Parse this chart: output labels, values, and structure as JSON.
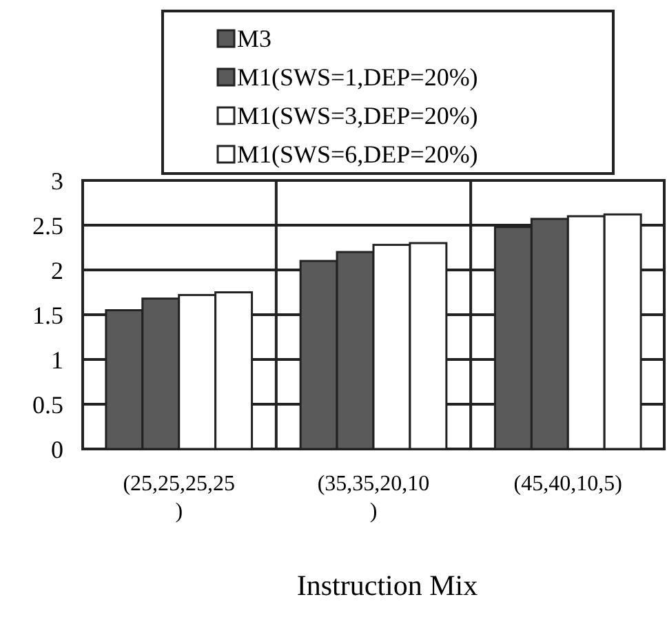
{
  "chart_data": {
    "type": "bar",
    "xlabel": "Instruction Mix",
    "categories": [
      "(25,25,25,25)",
      "(35,35,20,10)",
      "(45,40,10,5)"
    ],
    "series": [
      {
        "name": "M3",
        "color": "#5a5a5a",
        "values": [
          1.55,
          2.1,
          2.48
        ]
      },
      {
        "name": "M1(SWS=1,DEP=20%)",
        "color": "#5a5a5a",
        "values": [
          1.68,
          2.2,
          2.57
        ]
      },
      {
        "name": "M1(SWS=3,DEP=20%)",
        "color": "#ffffff",
        "values": [
          1.72,
          2.28,
          2.6
        ]
      },
      {
        "name": "M1(SWS=6,DEP=20%)",
        "color": "#ffffff",
        "values": [
          1.75,
          2.3,
          2.62
        ]
      }
    ],
    "ylim": [
      0,
      3
    ],
    "yticks": [
      0,
      0.5,
      1,
      1.5,
      2,
      2.5,
      3
    ],
    "grid": true,
    "legend": "top"
  }
}
